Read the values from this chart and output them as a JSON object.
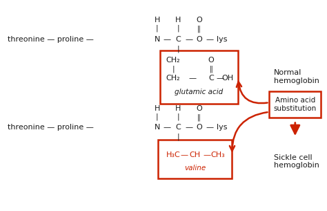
{
  "bg_color": "#ffffff",
  "black": "#1a1a1a",
  "red": "#cc2200",
  "fig_width": 4.74,
  "fig_height": 3.05,
  "normal_hemo": "Normal\nhemoglobin",
  "amino_sub": "Amino acid\nsubstitution",
  "sickle": "Sickle cell\nhemoglobin",
  "glutamic_acid": "glutamic acid",
  "valine": "valine"
}
